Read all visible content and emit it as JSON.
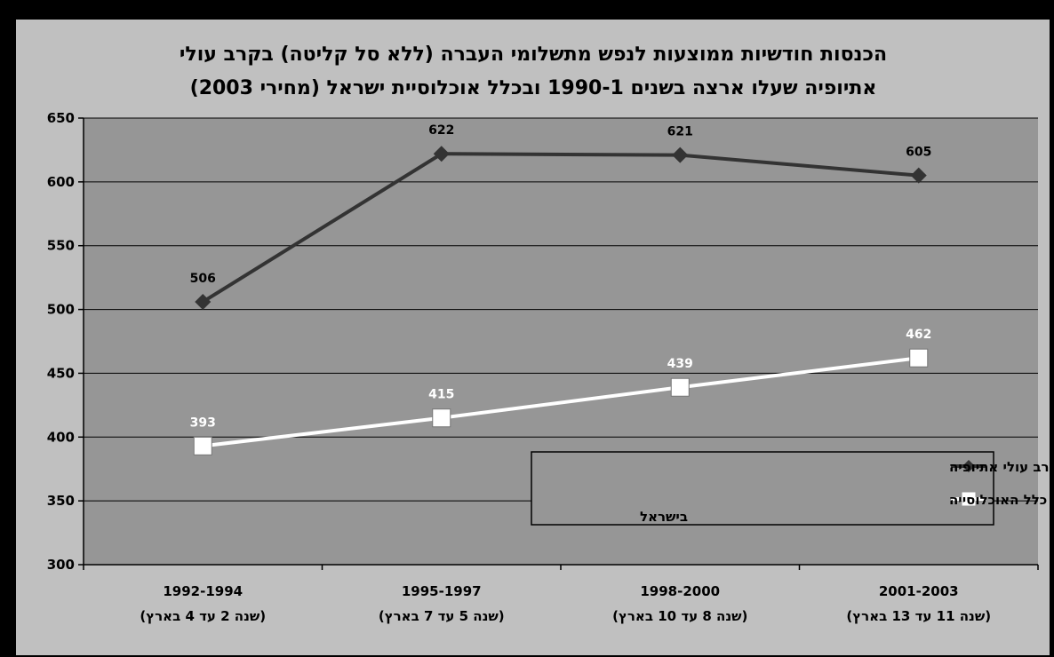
{
  "chart_data": {
    "type": "line",
    "title_lines": [
      "הכנסות חודשיות ממוצעות לנפש מתשלומי העברה (ללא סל קליטה) בקרב עולי",
      "אתיופיה שעלו ארצה בשנים 1990-1 ובכלל אוכלוסיית ישראל (מחירי 2003)"
    ],
    "categories": [
      {
        "line1": "1992-1994",
        "line2": "(שנה 2 עד 4 בארץ)"
      },
      {
        "line1": "1995-1997",
        "line2": "(שנה 5 עד 7 בארץ)"
      },
      {
        "line1": "1998-2000",
        "line2": "(שנה 8 עד 10 בארץ)"
      },
      {
        "line1": "2001-2003",
        "line2": "(שנה 11 עד 13 בארץ)"
      }
    ],
    "yticks": [
      "650",
      "600",
      "550",
      "500",
      "450",
      "400",
      "350",
      "300"
    ],
    "ylim": [
      300,
      650
    ],
    "grid": true,
    "legend_position": "inside-lower-right",
    "series": [
      {
        "name": "הכנסות מתשלומי העברה לנפש בקרב עולי אתיופיה",
        "values": [
          506,
          622,
          621,
          605
        ],
        "labels": [
          "506",
          "622",
          "621",
          "605"
        ],
        "color": "#333333",
        "label_color": "#000000",
        "marker": "diamond"
      },
      {
        "name_lines": [
          "הכנסות מתשלומי העברה לנפש בקרב כלל האוכלוסייה",
          "בישראל"
        ],
        "values": [
          393,
          415,
          439,
          462
        ],
        "labels": [
          "393",
          "415",
          "439",
          "462"
        ],
        "color": "#ffffff",
        "label_color": "#ffffff",
        "marker": "square"
      }
    ],
    "colors": {
      "frame_outer": "#000000",
      "chart_area": "#c0c0c0",
      "plot_area": "#969696",
      "gridline": "#000000"
    }
  }
}
